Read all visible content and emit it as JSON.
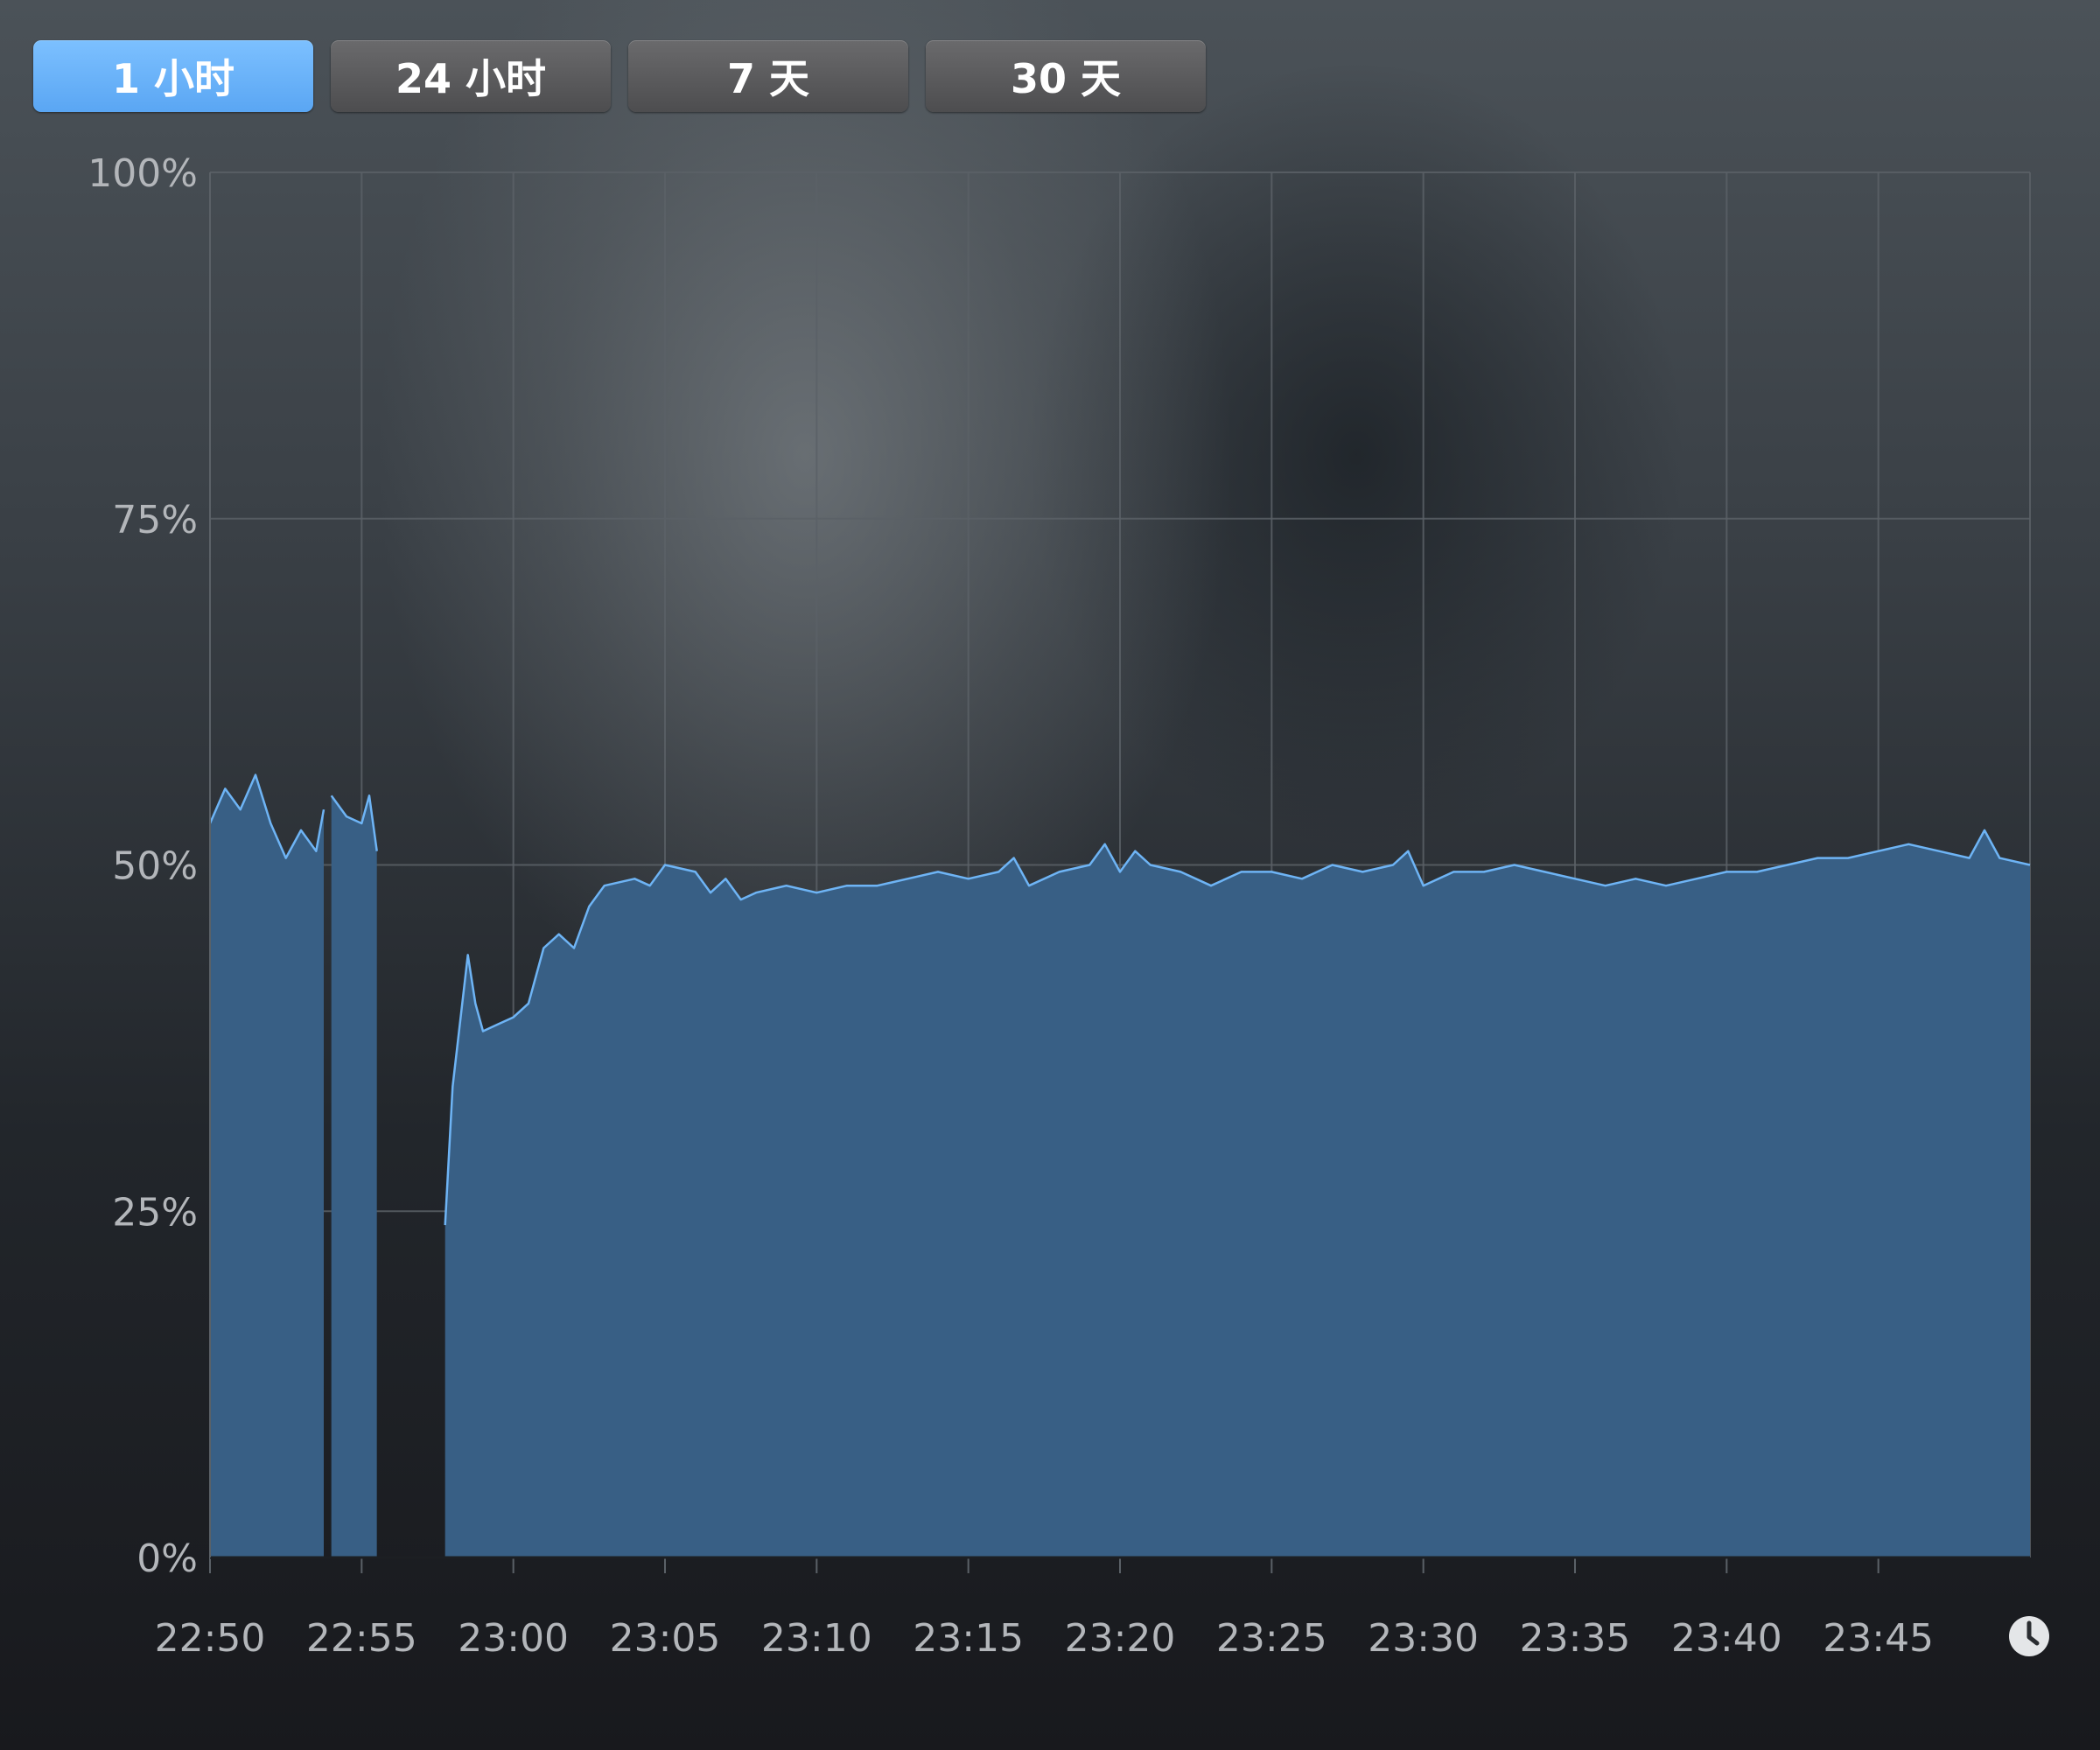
{
  "tabs": [
    {
      "label": "1 小时",
      "active": true
    },
    {
      "label": "24 小时",
      "active": false
    },
    {
      "label": "7 天",
      "active": false
    },
    {
      "label": "30 天",
      "active": false
    }
  ],
  "colors": {
    "active_tab": "#62acf5",
    "inactive_tab": "#575759",
    "area_fill": "#385f85",
    "line": "#6eb4f5",
    "grid": "#5b6167",
    "tick_text": "#b3b6ba"
  },
  "icons": {
    "time": "clock-icon"
  },
  "chart_data": {
    "type": "area",
    "title": "",
    "xlabel": "",
    "ylabel": "",
    "x_range": [
      "22:50",
      "23:50"
    ],
    "ylim": [
      0,
      100
    ],
    "y_ticks": [
      "0%",
      "25%",
      "50%",
      "75%",
      "100%"
    ],
    "x_ticks": [
      "22:50",
      "22:55",
      "23:00",
      "23:05",
      "23:10",
      "23:15",
      "23:20",
      "23:25",
      "23:30",
      "23:35",
      "23:40",
      "23:45"
    ],
    "grid": true,
    "legend": "none",
    "series": [
      {
        "segments": [
          [
            [
              "22:50",
              53
            ],
            [
              "22:50:30",
              55.5
            ],
            [
              "22:51",
              54
            ],
            [
              "22:51:30",
              56.5
            ],
            [
              "22:52",
              53
            ],
            [
              "22:52:30",
              50.5
            ],
            [
              "22:53",
              52.5
            ],
            [
              "22:53:30",
              51
            ],
            [
              "22:53:45",
              54
            ]
          ],
          [
            [
              "22:54",
              55
            ],
            [
              "22:54:30",
              53.5
            ],
            [
              "22:55",
              53
            ],
            [
              "22:55:15",
              55
            ],
            [
              "22:55:30",
              51
            ]
          ],
          [
            [
              "22:57:45",
              24
            ],
            [
              "22:58",
              34
            ],
            [
              "22:58:30",
              43.5
            ],
            [
              "22:58:45",
              40
            ],
            [
              "22:59",
              38
            ],
            [
              "22:59:30",
              38.5
            ],
            [
              "23:00",
              39
            ],
            [
              "23:00:30",
              40
            ],
            [
              "23:01",
              44
            ],
            [
              "23:01:30",
              45
            ],
            [
              "23:02",
              44
            ],
            [
              "23:02:30",
              47
            ],
            [
              "23:03",
              48.5
            ],
            [
              "23:04",
              49
            ],
            [
              "23:04:30",
              48.5
            ],
            [
              "23:05",
              50
            ],
            [
              "23:06",
              49.5
            ],
            [
              "23:06:30",
              48
            ],
            [
              "23:07",
              49
            ],
            [
              "23:07:30",
              47.5
            ],
            [
              "23:08",
              48
            ],
            [
              "23:09",
              48.5
            ],
            [
              "23:10",
              48
            ],
            [
              "23:11",
              48.5
            ],
            [
              "23:12",
              48.5
            ],
            [
              "23:13",
              49
            ],
            [
              "23:14",
              49.5
            ],
            [
              "23:15",
              49
            ],
            [
              "23:16",
              49.5
            ],
            [
              "23:16:30",
              50.5
            ],
            [
              "23:17",
              48.5
            ],
            [
              "23:18",
              49.5
            ],
            [
              "23:19",
              50
            ],
            [
              "23:19:30",
              51.5
            ],
            [
              "23:20",
              49.5
            ],
            [
              "23:20:30",
              51
            ],
            [
              "23:21",
              50
            ],
            [
              "23:22",
              49.5
            ],
            [
              "23:23",
              48.5
            ],
            [
              "23:24",
              49.5
            ],
            [
              "23:25",
              49.5
            ],
            [
              "23:26",
              49
            ],
            [
              "23:27",
              50
            ],
            [
              "23:28",
              49.5
            ],
            [
              "23:29",
              50
            ],
            [
              "23:29:30",
              51
            ],
            [
              "23:30",
              48.5
            ],
            [
              "23:31",
              49.5
            ],
            [
              "23:32",
              49.5
            ],
            [
              "23:33",
              50
            ],
            [
              "23:34",
              49.5
            ],
            [
              "23:35",
              49
            ],
            [
              "23:36",
              48.5
            ],
            [
              "23:37",
              49
            ],
            [
              "23:38",
              48.5
            ],
            [
              "23:39",
              49
            ],
            [
              "23:40",
              49.5
            ],
            [
              "23:41",
              49.5
            ],
            [
              "23:42",
              50
            ],
            [
              "23:43",
              50.5
            ],
            [
              "23:44",
              50.5
            ],
            [
              "23:45",
              51
            ],
            [
              "23:46",
              51.5
            ],
            [
              "23:47",
              51
            ],
            [
              "23:48",
              50.5
            ],
            [
              "23:48:30",
              52.5
            ],
            [
              "23:49",
              50.5
            ],
            [
              "23:50",
              50
            ]
          ]
        ]
      }
    ]
  }
}
